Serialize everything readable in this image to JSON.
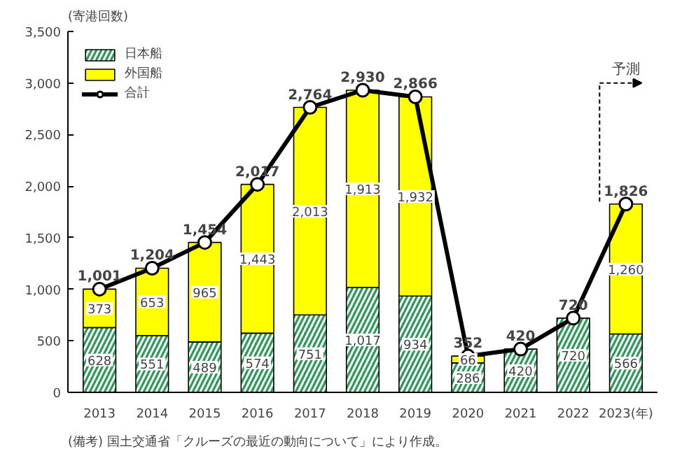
{
  "chart_data": {
    "type": "bar",
    "stacked": true,
    "ylabel": "(寄港回数)",
    "xlabel": "(年)",
    "categories": [
      "2013",
      "2014",
      "2015",
      "2016",
      "2017",
      "2018",
      "2019",
      "2020",
      "2021",
      "2022",
      "2023"
    ],
    "series": [
      {
        "name": "日本船",
        "color": "#2e9a5a",
        "values": [
          628,
          551,
          489,
          574,
          751,
          1017,
          934,
          286,
          420,
          720,
          566
        ],
        "value_labels": [
          "628",
          "551",
          "489",
          "574",
          "751",
          "1,017",
          "934",
          "286",
          "420",
          "720",
          "566"
        ]
      },
      {
        "name": "外国船",
        "color": "#ffff00",
        "values": [
          373,
          653,
          965,
          1443,
          2013,
          1913,
          1932,
          66,
          null,
          null,
          1260
        ],
        "value_labels": [
          "373",
          "653",
          "965",
          "1,443",
          "2,013",
          "1,913",
          "1,932",
          "66",
          null,
          null,
          "1,260"
        ]
      },
      {
        "name": "合計",
        "type": "line",
        "color": "#000000",
        "marker": "circle",
        "values": [
          1001,
          1204,
          1454,
          2017,
          2764,
          2930,
          2866,
          352,
          420,
          720,
          1826
        ],
        "value_labels": [
          "1,001",
          "1,204",
          "1,454",
          "2,017",
          "2,764",
          "2,930",
          "2,866",
          "352",
          "420",
          "720",
          "1,826"
        ]
      }
    ],
    "ylim": [
      0,
      3500
    ],
    "yticks": [
      {
        "value": 0,
        "label": "0"
      },
      {
        "value": 500,
        "label": "500"
      },
      {
        "value": 1000,
        "label": "1,000"
      },
      {
        "value": 1500,
        "label": "1,500"
      },
      {
        "value": 2000,
        "label": "2,000"
      },
      {
        "value": 2500,
        "label": "2,500"
      },
      {
        "value": 3000,
        "label": "3,000"
      },
      {
        "value": 3500,
        "label": "3,500"
      }
    ],
    "grid": false,
    "legend": "top left",
    "annotations": [
      "予測",
      "(備考) 国土交通省「クルーズの最近の動向について」により作成。"
    ]
  }
}
